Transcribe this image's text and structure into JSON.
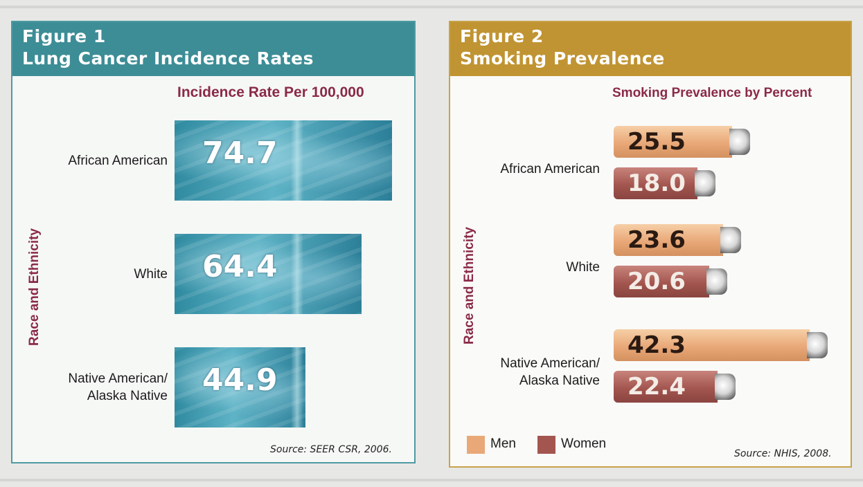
{
  "figure1": {
    "title_line1": "Figure 1",
    "title_line2": "Lung Cancer Incidence Rates",
    "header_color": "#3c8d96",
    "source": "Source: SEER CSR, 2006."
  },
  "figure2": {
    "title_line1": "Figure 2",
    "title_line2": "Smoking Prevalence",
    "header_color": "#c09432",
    "source": "Source: NHIS, 2008."
  },
  "chart_data": [
    {
      "type": "bar",
      "orientation": "horizontal",
      "title": "Incidence Rate Per 100,000",
      "xlabel": "",
      "ylabel": "Race and Ethnicity",
      "categories": [
        "African American",
        "White",
        "Native American/\nAlaska Native"
      ],
      "values": [
        74.7,
        64.4,
        44.9
      ],
      "data_labels": [
        "74.7",
        "64.4",
        "44.9"
      ],
      "bar_style": "chest-x-ray-image",
      "grid": false
    },
    {
      "type": "bar",
      "orientation": "horizontal",
      "title": "Smoking Prevalence by Percent",
      "xlabel": "",
      "ylabel": "Race and Ethnicity",
      "categories": [
        "African American",
        "White",
        "Native American/\nAlaska Native"
      ],
      "series": [
        {
          "name": "Men",
          "values": [
            25.5,
            23.6,
            42.3
          ],
          "data_labels": [
            "25.5",
            "23.6",
            "42.3"
          ],
          "color": "#e9a878"
        },
        {
          "name": "Women",
          "values": [
            18.0,
            20.6,
            22.4
          ],
          "data_labels": [
            "18.0",
            "20.6",
            "22.4"
          ],
          "color": "#a3564f"
        }
      ],
      "legend_position": "bottom-left",
      "bar_style": "cigarette-image",
      "grid": false
    }
  ]
}
